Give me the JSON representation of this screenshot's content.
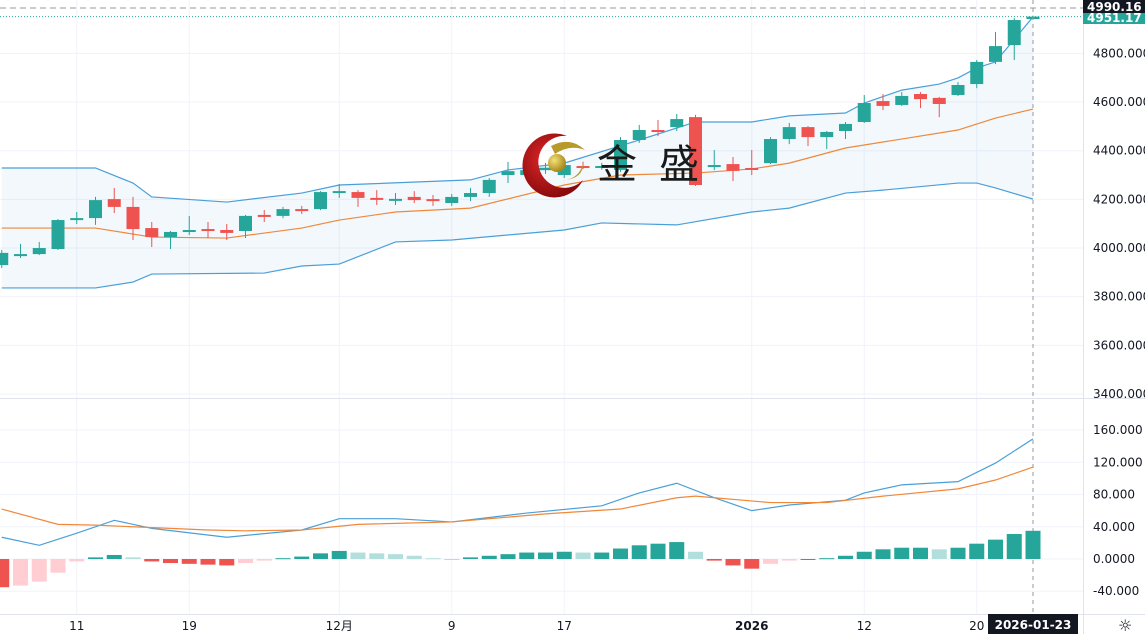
{
  "colors": {
    "up": "#26a69a",
    "down": "#ef5350",
    "up_light": "#b2dfdb",
    "down_light": "#ffcdd2",
    "band": "#4a9fd8",
    "mid": "#f0883a",
    "dif": "#4a9fd8",
    "dea": "#f0883a",
    "badge_dark": "#131722"
  },
  "price_axis": {
    "ticks": [
      "4800.000",
      "4600.000",
      "4400.000",
      "4200.000",
      "4000.000",
      "3800.000",
      "3600.000",
      "3400.000"
    ],
    "values": [
      4800,
      4600,
      4400,
      4200,
      4000,
      3800,
      3600,
      3400
    ],
    "range": [
      3400,
      5030
    ]
  },
  "macd_axis": {
    "ticks": [
      "160.000",
      "120.000",
      "80.000",
      "40.000",
      "0.0000",
      "-40.000"
    ],
    "values": [
      160,
      120,
      80,
      40,
      0,
      -40
    ],
    "range": [
      -70,
      180
    ]
  },
  "price_badges": {
    "high": "4990.16",
    "last": "4951.17"
  },
  "crosshair": {
    "date": "2026-01-23",
    "price": 4990.16
  },
  "time_axis": [
    {
      "label": "11",
      "index": 4
    },
    {
      "label": "19",
      "index": 10
    },
    {
      "label": "12月",
      "index": 18
    },
    {
      "label": "9",
      "index": 24
    },
    {
      "label": "17",
      "index": 30
    },
    {
      "label": "2026",
      "index": 40
    },
    {
      "label": "12",
      "index": 46
    },
    {
      "label": "20",
      "index": 52
    }
  ],
  "logo": {
    "text": "金盛"
  },
  "settings_icon": "gear-icon",
  "chart_data": {
    "type": "candlestick",
    "candles": [
      [
        3930,
        3992,
        3918,
        3980
      ],
      [
        3973,
        4017,
        3959,
        3975
      ],
      [
        3975,
        4025,
        3971,
        4000
      ],
      [
        3996,
        4119,
        3992,
        4115
      ],
      [
        4115,
        4148,
        4099,
        4123
      ],
      [
        4123,
        4210,
        4095,
        4197
      ],
      [
        4201,
        4247,
        4144,
        4169
      ],
      [
        4169,
        4210,
        4033,
        4078
      ],
      [
        4082,
        4107,
        4004,
        4045
      ],
      [
        4045,
        4070,
        3996,
        4066
      ],
      [
        4066,
        4132,
        4053,
        4074
      ],
      [
        4078,
        4107,
        4041,
        4074
      ],
      [
        4074,
        4099,
        4033,
        4062
      ],
      [
        4070,
        4136,
        4041,
        4132
      ],
      [
        4136,
        4156,
        4107,
        4132
      ],
      [
        4132,
        4169,
        4123,
        4160
      ],
      [
        4160,
        4173,
        4140,
        4152
      ],
      [
        4160,
        4234,
        4156,
        4230
      ],
      [
        4226,
        4263,
        4206,
        4234
      ],
      [
        4230,
        4238,
        4169,
        4206
      ],
      [
        4206,
        4238,
        4177,
        4201
      ],
      [
        4201,
        4226,
        4177,
        4202
      ],
      [
        4210,
        4234,
        4185,
        4197
      ],
      [
        4201,
        4218,
        4173,
        4193
      ],
      [
        4185,
        4222,
        4173,
        4210
      ],
      [
        4210,
        4247,
        4193,
        4226
      ],
      [
        4226,
        4288,
        4210,
        4280
      ],
      [
        4300,
        4354,
        4267,
        4316
      ],
      [
        4300,
        4345,
        4290,
        4320
      ],
      [
        4320,
        4350,
        4305,
        4330
      ],
      [
        4300,
        4362,
        4288,
        4341
      ],
      [
        4337,
        4355,
        4325,
        4333
      ],
      [
        4333,
        4350,
        4322,
        4337
      ],
      [
        4321,
        4456,
        4312,
        4444
      ],
      [
        4444,
        4506,
        4432,
        4485
      ],
      [
        4485,
        4526,
        4460,
        4481
      ],
      [
        4497,
        4551,
        4481,
        4530
      ],
      [
        4538,
        4547,
        4255,
        4259
      ],
      [
        4337,
        4403,
        4320,
        4341
      ],
      [
        4345,
        4374,
        4275,
        4317
      ],
      [
        4329,
        4403,
        4300,
        4325
      ],
      [
        4349,
        4456,
        4345,
        4448
      ],
      [
        4448,
        4514,
        4427,
        4497
      ],
      [
        4497,
        4501,
        4419,
        4456
      ],
      [
        4456,
        4481,
        4407,
        4477
      ],
      [
        4481,
        4518,
        4448,
        4510
      ],
      [
        4518,
        4629,
        4514,
        4596
      ],
      [
        4604,
        4633,
        4567,
        4584
      ],
      [
        4588,
        4641,
        4584,
        4625
      ],
      [
        4633,
        4641,
        4575,
        4612
      ],
      [
        4617,
        4621,
        4538,
        4592
      ],
      [
        4629,
        4682,
        4625,
        4670
      ],
      [
        4674,
        4773,
        4657,
        4765
      ],
      [
        4765,
        4888,
        4756,
        4830
      ],
      [
        4834,
        4945,
        4773,
        4937
      ],
      [
        4941,
        4955,
        4941,
        4951
      ]
    ],
    "boll_upper": [
      [
        0,
        4329
      ],
      [
        5,
        4329
      ],
      [
        7,
        4267
      ],
      [
        8,
        4210
      ],
      [
        12,
        4189
      ],
      [
        16,
        4226
      ],
      [
        18,
        4259
      ],
      [
        25,
        4280
      ],
      [
        27,
        4321
      ],
      [
        30,
        4349
      ],
      [
        34,
        4444
      ],
      [
        37,
        4518
      ],
      [
        40,
        4518
      ],
      [
        42,
        4543
      ],
      [
        45,
        4555
      ],
      [
        46,
        4596
      ],
      [
        48,
        4649
      ],
      [
        50,
        4674
      ],
      [
        51,
        4699
      ],
      [
        52,
        4740
      ],
      [
        53,
        4765
      ],
      [
        55,
        4950
      ]
    ],
    "boll_mid": [
      [
        0,
        4082
      ],
      [
        5,
        4082
      ],
      [
        8,
        4045
      ],
      [
        12,
        4041
      ],
      [
        16,
        4082
      ],
      [
        18,
        4115
      ],
      [
        21,
        4148
      ],
      [
        25,
        4164
      ],
      [
        30,
        4259
      ],
      [
        33,
        4300
      ],
      [
        37,
        4308
      ],
      [
        40,
        4325
      ],
      [
        42,
        4349
      ],
      [
        45,
        4411
      ],
      [
        51,
        4485
      ],
      [
        53,
        4534
      ],
      [
        55,
        4571
      ]
    ],
    "boll_lower": [
      [
        0,
        3836
      ],
      [
        5,
        3836
      ],
      [
        7,
        3860
      ],
      [
        8,
        3893
      ],
      [
        14,
        3897
      ],
      [
        16,
        3926
      ],
      [
        18,
        3934
      ],
      [
        21,
        4025
      ],
      [
        24,
        4033
      ],
      [
        30,
        4074
      ],
      [
        32,
        4103
      ],
      [
        36,
        4095
      ],
      [
        40,
        4148
      ],
      [
        42,
        4164
      ],
      [
        45,
        4226
      ],
      [
        47,
        4238
      ],
      [
        51,
        4267
      ],
      [
        52,
        4267
      ],
      [
        53,
        4247
      ],
      [
        55,
        4201
      ]
    ],
    "macd_dif": [
      [
        0,
        27
      ],
      [
        2,
        17
      ],
      [
        4,
        32
      ],
      [
        6,
        48
      ],
      [
        8,
        38
      ],
      [
        12,
        27
      ],
      [
        16,
        36
      ],
      [
        18,
        50
      ],
      [
        21,
        50
      ],
      [
        24,
        46
      ],
      [
        28,
        57
      ],
      [
        32,
        66
      ],
      [
        34,
        82
      ],
      [
        36,
        94
      ],
      [
        38,
        76
      ],
      [
        40,
        60
      ],
      [
        42,
        67
      ],
      [
        45,
        73
      ],
      [
        46,
        82
      ],
      [
        48,
        92
      ],
      [
        51,
        96
      ],
      [
        53,
        119
      ],
      [
        55,
        149
      ]
    ],
    "macd_dea": [
      [
        0,
        62
      ],
      [
        3,
        43
      ],
      [
        5,
        42
      ],
      [
        11,
        36
      ],
      [
        13,
        35
      ],
      [
        16,
        36
      ],
      [
        19,
        43
      ],
      [
        24,
        46
      ],
      [
        29,
        56
      ],
      [
        33,
        62
      ],
      [
        36,
        76
      ],
      [
        37,
        78
      ],
      [
        41,
        70
      ],
      [
        44,
        70
      ],
      [
        47,
        78
      ],
      [
        51,
        87
      ],
      [
        53,
        98
      ],
      [
        55,
        114
      ]
    ],
    "macd_hist": [
      -35,
      -33,
      -28,
      -17,
      -3,
      2,
      5,
      2,
      -3,
      -5,
      -6,
      -7,
      -8,
      -5,
      -2,
      1,
      3,
      7,
      10,
      8,
      7,
      6,
      4,
      1,
      0,
      2,
      4,
      6,
      8,
      8,
      9,
      8,
      8,
      13,
      17,
      19,
      21,
      9,
      -2,
      -8,
      -12,
      -6,
      -2,
      0,
      1,
      4,
      9,
      12,
      14,
      14,
      12,
      14,
      19,
      24,
      31,
      35
    ]
  }
}
